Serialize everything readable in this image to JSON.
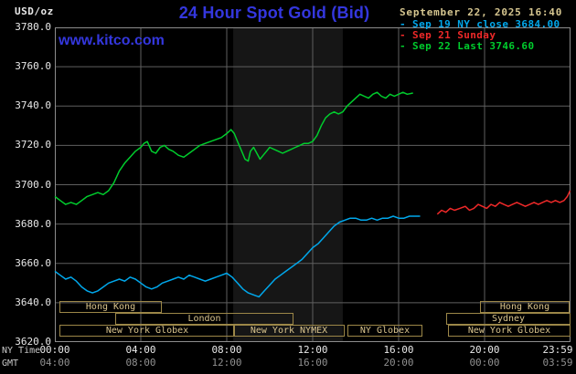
{
  "header": {
    "unit_label": "USD/oz",
    "title": "24 Hour Spot Gold (Bid)",
    "datetime": "September 22, 2025 16:40",
    "watermark": "www.kitco.com"
  },
  "legend": [
    {
      "label": "Sep 19 NY close 3684.00",
      "color": "#00a8ec"
    },
    {
      "label": "Sep 21 Sunday",
      "color": "#ef2929"
    },
    {
      "label": "Sep 22 Last 3746.60",
      "color": "#00cd2d"
    }
  ],
  "axes": {
    "ny_time_label": "NY Time",
    "gmt_label": "GMT",
    "y_ticks": [
      "3780.0",
      "3760.0",
      "3740.0",
      "3720.0",
      "3700.0",
      "3680.0",
      "3660.0",
      "3640.0",
      "3620.0"
    ],
    "x_ticks_ny": [
      {
        "label": "00:00",
        "hour": 0
      },
      {
        "label": "04:00",
        "hour": 4
      },
      {
        "label": "08:00",
        "hour": 8
      },
      {
        "label": "12:00",
        "hour": 12
      },
      {
        "label": "16:00",
        "hour": 16
      },
      {
        "label": "20:00",
        "hour": 20
      },
      {
        "label": "23:59",
        "hour": 23.98
      }
    ],
    "x_ticks_gmt": [
      {
        "label": "04:00",
        "hour": 0
      },
      {
        "label": "08:00",
        "hour": 4
      },
      {
        "label": "12:00",
        "hour": 8
      },
      {
        "label": "16:00",
        "hour": 12
      },
      {
        "label": "20:00",
        "hour": 16
      },
      {
        "label": "00:00",
        "hour": 20
      },
      {
        "label": "03:59",
        "hour": 23.98
      }
    ]
  },
  "sessions": [
    {
      "row": 0,
      "label": "Hong Kong",
      "start": 0.2,
      "end": 4.9
    },
    {
      "row": 0,
      "label": "Hong Kong",
      "start": 19.8,
      "end": 23.9
    },
    {
      "row": 1,
      "label": "London",
      "start": 2.8,
      "end": 11.0
    },
    {
      "row": 1,
      "label": "Sydney",
      "start": 18.2,
      "end": 23.9
    },
    {
      "row": 2,
      "label": "New York Globex",
      "start": 0.2,
      "end": 8.3
    },
    {
      "row": 2,
      "label": "New York NYMEX",
      "start": 8.3,
      "end": 13.4
    },
    {
      "row": 2,
      "label": "NY Globex",
      "start": 13.6,
      "end": 17.0
    },
    {
      "row": 2,
      "label": "New York Globex",
      "start": 18.3,
      "end": 23.9
    }
  ],
  "chart_data": {
    "type": "line",
    "title": "24 Hour Spot Gold (Bid)",
    "xlabel": "NY Time",
    "ylabel": "USD/oz",
    "x_range_hours": [
      0,
      24
    ],
    "ylim": [
      3620,
      3780
    ],
    "grid": true,
    "legend_position": "top-right",
    "nymex_band": {
      "start": 8.3,
      "end": 13.4,
      "color": "#161616"
    },
    "series": [
      {
        "name": "Sep 19 NY close 3684.00",
        "color": "#00a8ec",
        "points": [
          [
            0,
            3656
          ],
          [
            0.25,
            3654
          ],
          [
            0.5,
            3652
          ],
          [
            0.75,
            3653
          ],
          [
            1,
            3651
          ],
          [
            1.25,
            3648
          ],
          [
            1.5,
            3646
          ],
          [
            1.75,
            3645
          ],
          [
            2,
            3646
          ],
          [
            2.25,
            3648
          ],
          [
            2.5,
            3650
          ],
          [
            2.75,
            3651
          ],
          [
            3,
            3652
          ],
          [
            3.25,
            3651
          ],
          [
            3.5,
            3653
          ],
          [
            3.75,
            3652
          ],
          [
            4,
            3650
          ],
          [
            4.25,
            3648
          ],
          [
            4.5,
            3647
          ],
          [
            4.75,
            3648
          ],
          [
            5,
            3650
          ],
          [
            5.25,
            3651
          ],
          [
            5.5,
            3652
          ],
          [
            5.75,
            3653
          ],
          [
            6,
            3652
          ],
          [
            6.25,
            3654
          ],
          [
            6.5,
            3653
          ],
          [
            6.75,
            3652
          ],
          [
            7,
            3651
          ],
          [
            7.25,
            3652
          ],
          [
            7.5,
            3653
          ],
          [
            7.75,
            3654
          ],
          [
            8,
            3655
          ],
          [
            8.25,
            3653
          ],
          [
            8.5,
            3650
          ],
          [
            8.75,
            3647
          ],
          [
            9,
            3645
          ],
          [
            9.25,
            3644
          ],
          [
            9.5,
            3643
          ],
          [
            9.75,
            3646
          ],
          [
            10,
            3649
          ],
          [
            10.25,
            3652
          ],
          [
            10.5,
            3654
          ],
          [
            10.75,
            3656
          ],
          [
            11,
            3658
          ],
          [
            11.25,
            3660
          ],
          [
            11.5,
            3662
          ],
          [
            11.75,
            3665
          ],
          [
            12,
            3668
          ],
          [
            12.25,
            3670
          ],
          [
            12.5,
            3673
          ],
          [
            12.75,
            3676
          ],
          [
            13,
            3679
          ],
          [
            13.25,
            3681
          ],
          [
            13.5,
            3682
          ],
          [
            13.75,
            3683
          ],
          [
            14,
            3683
          ],
          [
            14.25,
            3682
          ],
          [
            14.5,
            3682
          ],
          [
            14.75,
            3683
          ],
          [
            15,
            3682
          ],
          [
            15.25,
            3683
          ],
          [
            15.5,
            3683
          ],
          [
            15.75,
            3684
          ],
          [
            16,
            3683
          ],
          [
            16.25,
            3683
          ],
          [
            16.5,
            3684
          ],
          [
            16.75,
            3684
          ],
          [
            17,
            3684
          ]
        ]
      },
      {
        "name": "Sep 21 Sunday",
        "color": "#ef2929",
        "points": [
          [
            17.8,
            3685
          ],
          [
            18,
            3687
          ],
          [
            18.2,
            3686
          ],
          [
            18.4,
            3688
          ],
          [
            18.6,
            3687
          ],
          [
            18.85,
            3688
          ],
          [
            19.1,
            3689
          ],
          [
            19.3,
            3687
          ],
          [
            19.5,
            3688
          ],
          [
            19.7,
            3690
          ],
          [
            19.9,
            3689
          ],
          [
            20.1,
            3688
          ],
          [
            20.3,
            3690
          ],
          [
            20.5,
            3689
          ],
          [
            20.7,
            3691
          ],
          [
            20.9,
            3690
          ],
          [
            21.1,
            3689
          ],
          [
            21.3,
            3690
          ],
          [
            21.5,
            3691
          ],
          [
            21.7,
            3690
          ],
          [
            21.9,
            3689
          ],
          [
            22.1,
            3690
          ],
          [
            22.3,
            3691
          ],
          [
            22.5,
            3690
          ],
          [
            22.7,
            3691
          ],
          [
            22.9,
            3692
          ],
          [
            23.1,
            3691
          ],
          [
            23.3,
            3692
          ],
          [
            23.5,
            3691
          ],
          [
            23.7,
            3692
          ],
          [
            23.85,
            3694
          ],
          [
            23.98,
            3697
          ]
        ]
      },
      {
        "name": "Sep 22 Last 3746.60",
        "color": "#00cd2d",
        "points": [
          [
            0,
            3694
          ],
          [
            0.25,
            3692
          ],
          [
            0.5,
            3690
          ],
          [
            0.75,
            3691
          ],
          [
            1,
            3690
          ],
          [
            1.25,
            3692
          ],
          [
            1.5,
            3694
          ],
          [
            1.75,
            3695
          ],
          [
            2,
            3696
          ],
          [
            2.25,
            3695
          ],
          [
            2.5,
            3697
          ],
          [
            2.75,
            3701
          ],
          [
            3,
            3707
          ],
          [
            3.25,
            3711
          ],
          [
            3.5,
            3714
          ],
          [
            3.75,
            3717
          ],
          [
            4,
            3719
          ],
          [
            4.15,
            3721
          ],
          [
            4.3,
            3722
          ],
          [
            4.5,
            3717
          ],
          [
            4.7,
            3716
          ],
          [
            4.9,
            3719
          ],
          [
            5.1,
            3720
          ],
          [
            5.3,
            3718
          ],
          [
            5.5,
            3717
          ],
          [
            5.75,
            3715
          ],
          [
            6,
            3714
          ],
          [
            6.25,
            3716
          ],
          [
            6.5,
            3718
          ],
          [
            6.75,
            3720
          ],
          [
            7,
            3721
          ],
          [
            7.25,
            3722
          ],
          [
            7.5,
            3723
          ],
          [
            7.75,
            3724
          ],
          [
            8,
            3726
          ],
          [
            8.2,
            3728
          ],
          [
            8.35,
            3726
          ],
          [
            8.5,
            3722
          ],
          [
            8.7,
            3717
          ],
          [
            8.85,
            3713
          ],
          [
            9,
            3712
          ],
          [
            9.1,
            3717
          ],
          [
            9.25,
            3719
          ],
          [
            9.4,
            3716
          ],
          [
            9.55,
            3713
          ],
          [
            9.7,
            3715
          ],
          [
            9.85,
            3717
          ],
          [
            10,
            3719
          ],
          [
            10.2,
            3718
          ],
          [
            10.4,
            3717
          ],
          [
            10.6,
            3716
          ],
          [
            10.8,
            3717
          ],
          [
            11,
            3718
          ],
          [
            11.2,
            3719
          ],
          [
            11.4,
            3720
          ],
          [
            11.6,
            3721
          ],
          [
            11.8,
            3721
          ],
          [
            12,
            3722
          ],
          [
            12.2,
            3725
          ],
          [
            12.4,
            3730
          ],
          [
            12.6,
            3734
          ],
          [
            12.8,
            3736
          ],
          [
            13,
            3737
          ],
          [
            13.2,
            3736
          ],
          [
            13.4,
            3737
          ],
          [
            13.6,
            3740
          ],
          [
            13.8,
            3742
          ],
          [
            14,
            3744
          ],
          [
            14.2,
            3746
          ],
          [
            14.4,
            3745
          ],
          [
            14.6,
            3744
          ],
          [
            14.8,
            3746
          ],
          [
            15,
            3747
          ],
          [
            15.2,
            3745
          ],
          [
            15.4,
            3744
          ],
          [
            15.6,
            3746
          ],
          [
            15.8,
            3745
          ],
          [
            16,
            3746
          ],
          [
            16.2,
            3747
          ],
          [
            16.4,
            3746
          ],
          [
            16.67,
            3746.6
          ]
        ]
      }
    ]
  },
  "colors": {
    "background": "#000000",
    "title_blue": "#3437de",
    "tan_text": "#d9c48d",
    "tan_border": "#9c8748",
    "grid": "#5f5f5f",
    "plot_border": "#8c8c8c"
  }
}
